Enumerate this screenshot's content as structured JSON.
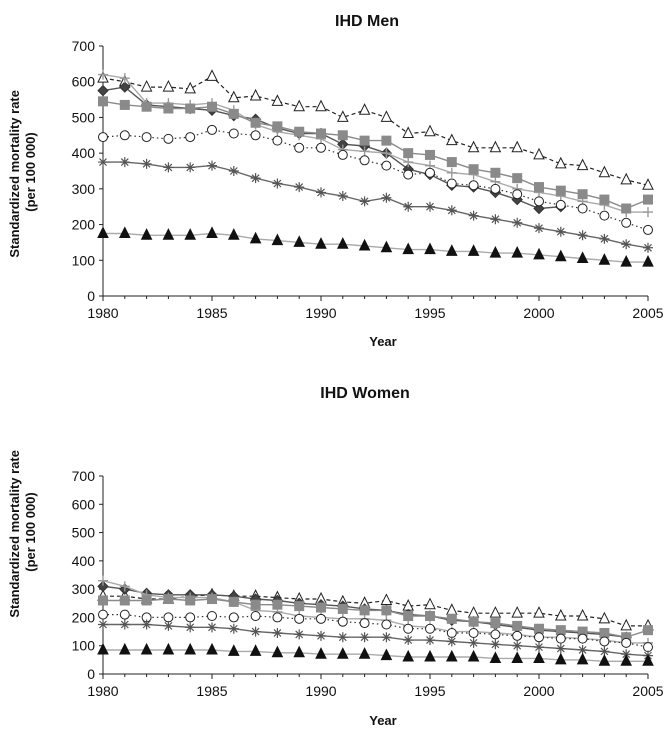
{
  "chart_data": [
    {
      "type": "line",
      "title": "IHD Men",
      "xlabel": "Year",
      "ylabel": "Standardized mortality rate\n(per 100 000)",
      "xlim": [
        1980,
        2005
      ],
      "ylim": [
        0,
        700
      ],
      "xticks": [
        1980,
        1985,
        1990,
        1995,
        2000,
        2005
      ],
      "yticks": [
        0,
        100,
        200,
        300,
        400,
        500,
        600,
        700
      ],
      "grid": false,
      "x": [
        1980,
        1981,
        1982,
        1983,
        1984,
        1985,
        1986,
        1987,
        1988,
        1989,
        1990,
        1991,
        1992,
        1993,
        1994,
        1995,
        1996,
        1997,
        1998,
        1999,
        2000,
        2001,
        2002,
        2003,
        2004,
        2005
      ],
      "series": [
        {
          "marker": "triangle-open",
          "line": "dashed",
          "color": "#222222",
          "values": [
            610,
            600,
            585,
            585,
            580,
            615,
            555,
            560,
            545,
            530,
            530,
            500,
            520,
            500,
            455,
            460,
            435,
            415,
            415,
            415,
            395,
            370,
            365,
            345,
            325,
            310
          ]
        },
        {
          "marker": "diamond-filled",
          "line": "solid",
          "color": "#555555",
          "values": [
            575,
            585,
            535,
            530,
            525,
            520,
            505,
            495,
            470,
            455,
            455,
            425,
            420,
            400,
            355,
            340,
            310,
            305,
            290,
            270,
            245,
            250,
            null,
            null,
            null,
            null
          ]
        },
        {
          "marker": "plus",
          "line": "solid",
          "color": "#aaaaaa",
          "values": [
            620,
            610,
            540,
            540,
            535,
            540,
            520,
            480,
            460,
            450,
            440,
            410,
            405,
            400,
            375,
            365,
            345,
            340,
            320,
            300,
            290,
            280,
            265,
            255,
            235,
            235
          ]
        },
        {
          "marker": "square-filled",
          "line": "solid",
          "color": "#8a8a8a",
          "values": [
            545,
            535,
            530,
            525,
            525,
            530,
            510,
            485,
            475,
            460,
            455,
            450,
            435,
            435,
            400,
            395,
            375,
            355,
            345,
            330,
            305,
            295,
            285,
            270,
            245,
            270
          ]
        },
        {
          "marker": "circle-open",
          "line": "dotted",
          "color": "#333333",
          "values": [
            445,
            450,
            445,
            440,
            445,
            465,
            455,
            450,
            435,
            415,
            415,
            395,
            380,
            365,
            340,
            345,
            315,
            310,
            300,
            285,
            265,
            255,
            245,
            225,
            205,
            185
          ]
        },
        {
          "marker": "asterisk",
          "line": "solid",
          "color": "#666666",
          "values": [
            375,
            375,
            370,
            360,
            360,
            365,
            350,
            330,
            315,
            305,
            290,
            280,
            265,
            275,
            250,
            250,
            240,
            225,
            215,
            205,
            190,
            180,
            170,
            160,
            145,
            135
          ]
        },
        {
          "marker": "triangle-filled",
          "line": "solid",
          "color": "#aaaaaa",
          "values": [
            175,
            175,
            170,
            170,
            170,
            175,
            170,
            160,
            155,
            150,
            145,
            145,
            140,
            135,
            130,
            130,
            125,
            125,
            120,
            120,
            115,
            110,
            105,
            100,
            95,
            95
          ]
        }
      ]
    },
    {
      "type": "line",
      "title": "IHD Women",
      "xlabel": "Year",
      "ylabel": "Standardized mortality rate\n(per 100 000)",
      "xlim": [
        1980,
        2005
      ],
      "ylim": [
        0,
        700
      ],
      "xticks": [
        1980,
        1985,
        1990,
        1995,
        2000,
        2005
      ],
      "yticks": [
        0,
        100,
        200,
        300,
        400,
        500,
        600,
        700
      ],
      "grid": false,
      "x": [
        1980,
        1981,
        1982,
        1983,
        1984,
        1985,
        1986,
        1987,
        1988,
        1989,
        1990,
        1991,
        1992,
        1993,
        1994,
        1995,
        1996,
        1997,
        1998,
        1999,
        2000,
        2001,
        2002,
        2003,
        2004,
        2005
      ],
      "series": [
        {
          "marker": "triangle-open",
          "line": "dashed",
          "color": "#222222",
          "values": [
            275,
            275,
            265,
            265,
            275,
            280,
            275,
            275,
            270,
            265,
            265,
            255,
            250,
            260,
            240,
            245,
            225,
            215,
            215,
            215,
            215,
            205,
            205,
            195,
            170,
            170
          ]
        },
        {
          "marker": "diamond-filled",
          "line": "solid",
          "color": "#555555",
          "values": [
            310,
            300,
            285,
            280,
            280,
            280,
            275,
            265,
            260,
            250,
            245,
            240,
            230,
            225,
            210,
            205,
            190,
            185,
            175,
            165,
            155,
            150,
            145,
            140,
            130,
            null
          ]
        },
        {
          "marker": "plus",
          "line": "solid",
          "color": "#aaaaaa",
          "values": [
            330,
            310,
            280,
            270,
            270,
            270,
            255,
            225,
            220,
            205,
            200,
            195,
            195,
            190,
            170,
            165,
            150,
            150,
            145,
            140,
            130,
            130,
            125,
            120,
            110,
            110
          ]
        },
        {
          "marker": "square-filled",
          "line": "solid",
          "color": "#8a8a8a",
          "values": [
            260,
            260,
            260,
            265,
            260,
            265,
            255,
            245,
            245,
            240,
            235,
            230,
            225,
            225,
            205,
            205,
            195,
            185,
            180,
            170,
            160,
            155,
            150,
            145,
            130,
            155
          ]
        },
        {
          "marker": "circle-open",
          "line": "dotted",
          "color": "#333333",
          "values": [
            210,
            210,
            200,
            200,
            200,
            205,
            200,
            205,
            200,
            195,
            195,
            185,
            180,
            175,
            160,
            160,
            145,
            145,
            140,
            135,
            130,
            125,
            125,
            115,
            110,
            95
          ]
        },
        {
          "marker": "asterisk",
          "line": "solid",
          "color": "#666666",
          "values": [
            175,
            175,
            175,
            170,
            165,
            165,
            160,
            150,
            145,
            140,
            135,
            130,
            130,
            130,
            120,
            120,
            115,
            110,
            105,
            100,
            95,
            90,
            85,
            80,
            70,
            65
          ]
        },
        {
          "marker": "triangle-filled",
          "line": "solid",
          "color": "#aaaaaa",
          "values": [
            85,
            85,
            85,
            85,
            85,
            85,
            80,
            80,
            75,
            75,
            70,
            70,
            70,
            65,
            60,
            60,
            60,
            60,
            55,
            55,
            55,
            50,
            50,
            45,
            45,
            45
          ]
        }
      ]
    }
  ]
}
